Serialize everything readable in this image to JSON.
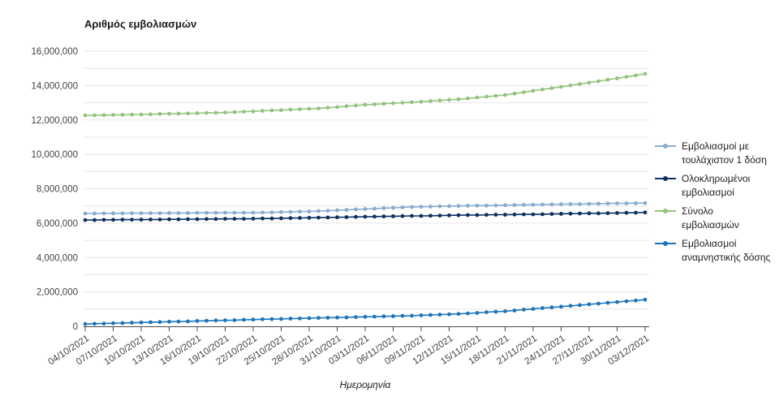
{
  "colors": {
    "background": "#ffffff",
    "grid": "#e6e6e6",
    "axis": "#4a4a4a",
    "tick_text": "#424242",
    "text": "#212121"
  },
  "chart_data": {
    "type": "line",
    "title": "Αριθμός εμβολιασμών",
    "xlabel": "Ημερομηνία",
    "ylabel": "",
    "ylim": [
      0,
      16000000
    ],
    "y_grid_step": 1000000,
    "y_label_step": 2000000,
    "x_label_every": 3,
    "grid": true,
    "legend_position": "right",
    "y_tick_labels": [
      "0",
      "2,000,000",
      "4,000,000",
      "6,000,000",
      "8,000,000",
      "10,000,000",
      "12,000,000",
      "14,000,000",
      "16,000,000"
    ],
    "x_tick_labels": [
      "04/10/2021",
      "07/10/2021",
      "10/10/2021",
      "13/10/2021",
      "16/10/2021",
      "19/10/2021",
      "22/10/2021",
      "25/10/2021",
      "28/10/2021",
      "31/10/2021",
      "03/11/2021",
      "06/11/2021",
      "09/11/2021",
      "12/11/2021",
      "15/11/2021",
      "18/11/2021",
      "21/11/2021",
      "24/11/2021",
      "27/11/2021",
      "30/11/2021",
      "03/12/2021"
    ],
    "x": [
      "04/10/2021",
      "05/10/2021",
      "06/10/2021",
      "07/10/2021",
      "08/10/2021",
      "09/10/2021",
      "10/10/2021",
      "11/10/2021",
      "12/10/2021",
      "13/10/2021",
      "14/10/2021",
      "15/10/2021",
      "16/10/2021",
      "17/10/2021",
      "18/10/2021",
      "19/10/2021",
      "20/10/2021",
      "21/10/2021",
      "22/10/2021",
      "23/10/2021",
      "24/10/2021",
      "25/10/2021",
      "26/10/2021",
      "27/10/2021",
      "28/10/2021",
      "29/10/2021",
      "30/10/2021",
      "31/10/2021",
      "01/11/2021",
      "02/11/2021",
      "03/11/2021",
      "04/11/2021",
      "05/11/2021",
      "06/11/2021",
      "07/11/2021",
      "08/11/2021",
      "09/11/2021",
      "10/11/2021",
      "11/11/2021",
      "12/11/2021",
      "13/11/2021",
      "14/11/2021",
      "15/11/2021",
      "16/11/2021",
      "17/11/2021",
      "18/11/2021",
      "19/11/2021",
      "20/11/2021",
      "21/11/2021",
      "22/11/2021",
      "23/11/2021",
      "24/11/2021",
      "25/11/2021",
      "26/11/2021",
      "27/11/2021",
      "28/11/2021",
      "29/11/2021",
      "30/11/2021",
      "01/12/2021",
      "02/12/2021",
      "03/12/2021"
    ],
    "series": [
      {
        "id": "first-dose",
        "name": "Εμβολιασμοί με τουλάχιστον 1 δόση",
        "color": "#88abce",
        "values": [
          6560000,
          6560000,
          6570000,
          6570000,
          6570000,
          6580000,
          6580000,
          6580000,
          6580000,
          6590000,
          6590000,
          6590000,
          6600000,
          6600000,
          6600000,
          6610000,
          6610000,
          6610000,
          6610000,
          6620000,
          6620000,
          6640000,
          6650000,
          6670000,
          6680000,
          6700000,
          6720000,
          6750000,
          6770000,
          6800000,
          6820000,
          6840000,
          6870000,
          6890000,
          6920000,
          6940000,
          6950000,
          6960000,
          6980000,
          6990000,
          7000000,
          7010000,
          7020000,
          7020000,
          7030000,
          7040000,
          7050000,
          7060000,
          7070000,
          7080000,
          7090000,
          7100000,
          7110000,
          7110000,
          7120000,
          7130000,
          7140000,
          7150000,
          7150000,
          7160000,
          7170000
        ]
      },
      {
        "id": "completed",
        "name": "Ολοκληρωμένοι εμβολιασμοί",
        "color": "#0d3060",
        "values": [
          6180000,
          6180000,
          6190000,
          6190000,
          6200000,
          6200000,
          6200000,
          6210000,
          6210000,
          6220000,
          6220000,
          6230000,
          6230000,
          6240000,
          6240000,
          6250000,
          6250000,
          6250000,
          6260000,
          6270000,
          6270000,
          6280000,
          6290000,
          6300000,
          6310000,
          6320000,
          6330000,
          6340000,
          6350000,
          6360000,
          6370000,
          6380000,
          6390000,
          6400000,
          6410000,
          6420000,
          6420000,
          6430000,
          6440000,
          6450000,
          6460000,
          6470000,
          6470000,
          6480000,
          6490000,
          6490000,
          6500000,
          6510000,
          6510000,
          6520000,
          6530000,
          6540000,
          6550000,
          6560000,
          6570000,
          6570000,
          6580000,
          6590000,
          6600000,
          6610000,
          6620000
        ]
      },
      {
        "id": "total",
        "name": "Σύνολο εμβολιασμών",
        "color": "#93c47d",
        "values": [
          12260000,
          12270000,
          12280000,
          12290000,
          12300000,
          12310000,
          12320000,
          12330000,
          12350000,
          12360000,
          12370000,
          12380000,
          12390000,
          12410000,
          12420000,
          12430000,
          12450000,
          12480000,
          12500000,
          12530000,
          12550000,
          12570000,
          12600000,
          12620000,
          12650000,
          12670000,
          12710000,
          12750000,
          12800000,
          12840000,
          12880000,
          12910000,
          12940000,
          12970000,
          13000000,
          13030000,
          13060000,
          13100000,
          13130000,
          13170000,
          13200000,
          13250000,
          13300000,
          13350000,
          13400000,
          13450000,
          13530000,
          13610000,
          13690000,
          13770000,
          13850000,
          13930000,
          14010000,
          14090000,
          14170000,
          14250000,
          14340000,
          14420000,
          14510000,
          14590000,
          14680000
        ]
      },
      {
        "id": "booster",
        "name": "Εμβολιασμοί αναμνηστικής δόσης",
        "color": "#1c75bc",
        "values": [
          130000,
          150000,
          160000,
          180000,
          190000,
          210000,
          220000,
          240000,
          250000,
          270000,
          280000,
          290000,
          310000,
          320000,
          340000,
          350000,
          360000,
          380000,
          390000,
          410000,
          420000,
          430000,
          450000,
          460000,
          470000,
          490000,
          500000,
          510000,
          520000,
          540000,
          550000,
          560000,
          580000,
          590000,
          610000,
          620000,
          640000,
          660000,
          680000,
          700000,
          720000,
          750000,
          780000,
          820000,
          850000,
          880000,
          920000,
          970000,
          1010000,
          1060000,
          1100000,
          1140000,
          1190000,
          1230000,
          1280000,
          1320000,
          1370000,
          1410000,
          1460000,
          1500000,
          1550000
        ]
      }
    ]
  }
}
